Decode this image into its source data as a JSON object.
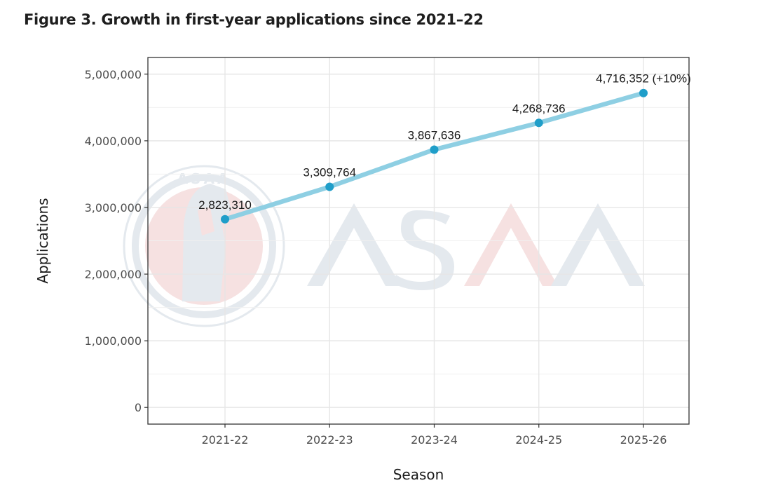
{
  "figure": {
    "title": "Figure 3. Growth in first-year applications since 2021–22"
  },
  "watermark": {
    "text": "ASAA",
    "seal_text": "ASAA"
  },
  "colors": {
    "line": "#8ecfe3",
    "point": "#1f9ec9",
    "grid": "#e6e6e6",
    "axis": "#333333",
    "watermark_blue": "#e4e9ee",
    "watermark_red": "#f6e1e1"
  },
  "chart_data": {
    "type": "line",
    "title": "Figure 3. Growth in first-year applications since 2021–22",
    "xlabel": "Season",
    "ylabel": "Applications",
    "categories": [
      "2021-22",
      "2022-23",
      "2023-24",
      "2024-25",
      "2025-26"
    ],
    "series": [
      {
        "name": "Applications",
        "values": [
          2823310,
          3309764,
          3867636,
          4268736,
          4716352
        ]
      }
    ],
    "data_labels": [
      "2,823,310",
      "3,309,764",
      "3,867,636",
      "4,268,736",
      "4,716,352 (+10%)"
    ],
    "yticks": [
      0,
      1000000,
      2000000,
      3000000,
      4000000,
      5000000
    ],
    "ytick_labels": [
      "0",
      "1,000,000",
      "2,000,000",
      "3,000,000",
      "4,000,000",
      "5,000,000"
    ],
    "ylim": [
      -250000,
      5250000
    ],
    "grid": true
  }
}
